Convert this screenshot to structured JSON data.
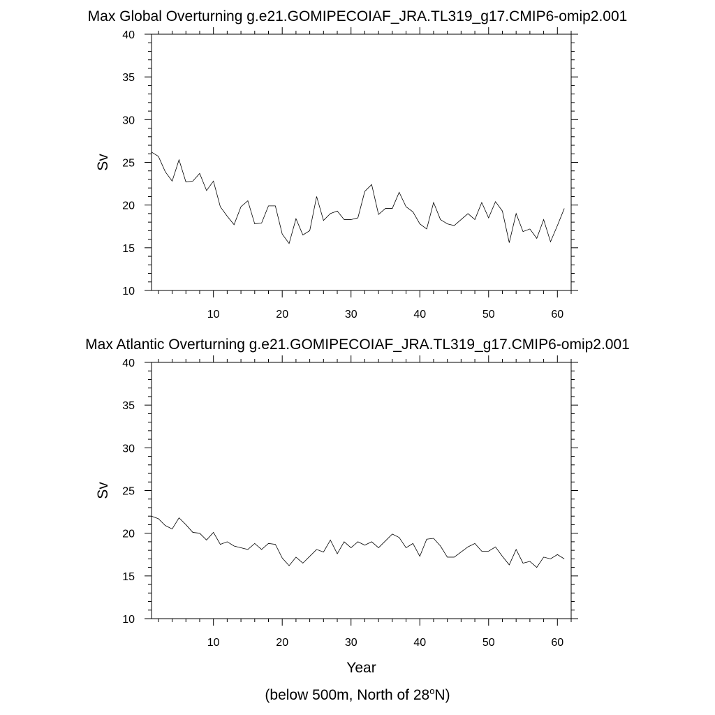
{
  "chart_data": [
    {
      "type": "line",
      "title": "Max Global Overturning g.e21.GOMIPECOIAF_JRA.TL319_g17.CMIP6-omip2.001",
      "xlabel": "",
      "ylabel": "Sv",
      "xlim": [
        1,
        62
      ],
      "ylim": [
        10,
        40
      ],
      "x_ticks": [
        10,
        20,
        30,
        40,
        50,
        60
      ],
      "y_ticks": [
        10,
        15,
        20,
        25,
        30,
        35,
        40
      ],
      "grid": false,
      "series": [
        {
          "x_start": 1,
          "values": [
            26.2,
            25.7,
            23.9,
            22.8,
            25.3,
            22.7,
            22.8,
            23.7,
            21.7,
            22.8,
            19.8,
            18.7,
            17.7,
            19.8,
            20.5,
            17.8,
            17.9,
            19.9,
            19.9,
            16.6,
            15.5,
            18.4,
            16.5,
            17.0,
            21.0,
            18.2,
            19.0,
            19.3,
            18.3,
            18.3,
            18.5,
            21.6,
            22.4,
            18.9,
            19.6,
            19.6,
            21.5,
            19.8,
            19.2,
            17.8,
            17.2,
            20.3,
            18.3,
            17.8,
            17.6,
            18.3,
            19.0,
            18.3,
            20.3,
            18.5,
            20.4,
            19.3,
            15.6,
            19.0,
            16.9,
            17.2,
            16.1,
            18.3,
            15.7,
            17.6,
            19.6
          ]
        }
      ]
    },
    {
      "type": "line",
      "title": "Max Atlantic Overturning g.e21.GOMIPECOIAF_JRA.TL319_g17.CMIP6-omip2.001",
      "xlabel": "Year",
      "ylabel": "Sv",
      "xlim": [
        1,
        62
      ],
      "ylim": [
        10,
        40
      ],
      "x_ticks": [
        10,
        20,
        30,
        40,
        50,
        60
      ],
      "y_ticks": [
        10,
        15,
        20,
        25,
        30,
        35,
        40
      ],
      "grid": false,
      "series": [
        {
          "x_start": 1,
          "values": [
            22.0,
            21.7,
            20.9,
            20.5,
            21.8,
            21.0,
            20.1,
            20.0,
            19.2,
            20.1,
            18.7,
            19.0,
            18.5,
            18.3,
            18.1,
            18.8,
            18.1,
            18.8,
            18.7,
            17.1,
            16.2,
            17.2,
            16.5,
            17.3,
            18.1,
            17.8,
            19.2,
            17.6,
            19.0,
            18.3,
            19.0,
            18.6,
            19.0,
            18.3,
            19.1,
            19.9,
            19.5,
            18.3,
            18.8,
            17.3,
            19.3,
            19.4,
            18.5,
            17.2,
            17.2,
            17.8,
            18.4,
            18.8,
            17.9,
            17.9,
            18.4,
            17.3,
            16.3,
            18.1,
            16.5,
            16.7,
            16.0,
            17.2,
            17.0,
            17.5,
            17.0
          ]
        }
      ]
    }
  ],
  "footer": {
    "prefix": "(below 500m, North of 28",
    "superscript": "o",
    "suffix": "N)"
  }
}
